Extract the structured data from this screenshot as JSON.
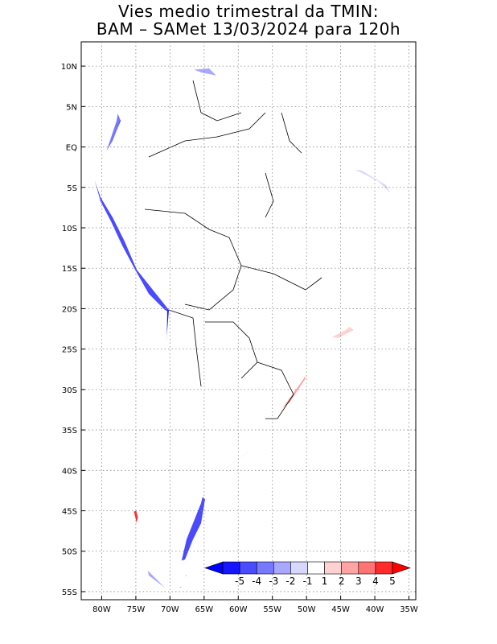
{
  "title": {
    "line1": "Vies medio trimestral da TMIN:",
    "line2": "BAM – SAMet 13/03/2024  para 120h"
  },
  "axes": {
    "lon_labels": [
      "80W",
      "75W",
      "70W",
      "65W",
      "60W",
      "55W",
      "50W",
      "45W",
      "40W",
      "35W"
    ],
    "lat_labels": [
      "10N",
      "5N",
      "EQ",
      "5S",
      "10S",
      "15S",
      "20S",
      "25S",
      "30S",
      "35S",
      "40S",
      "45S",
      "50S",
      "55S"
    ],
    "lon_values": [
      -80,
      -75,
      -70,
      -65,
      -60,
      -55,
      -50,
      -45,
      -40,
      -35
    ],
    "lat_values": [
      10,
      5,
      0,
      -5,
      -10,
      -15,
      -20,
      -25,
      -30,
      -35,
      -40,
      -45,
      -50,
      -55
    ],
    "lon_range": [
      -83,
      -34
    ],
    "lat_range": [
      -56,
      13
    ],
    "grid": "dotted"
  },
  "colorbar": {
    "labels": [
      "-5",
      "-4",
      "-3",
      "-2",
      "-1",
      "1",
      "2",
      "3",
      "4",
      "5"
    ],
    "colors": [
      "#1515ff",
      "#4a4aff",
      "#7878ff",
      "#a8a8ff",
      "#d8d8ff",
      "#ffffff",
      "#ffd2d2",
      "#ffa3a3",
      "#ff7373",
      "#ff2b2b"
    ],
    "placement": "bottom-right"
  },
  "colors": {
    "land_bg": "#ffffff",
    "ocean_bg": "#ffffff",
    "border": "#000000"
  }
}
